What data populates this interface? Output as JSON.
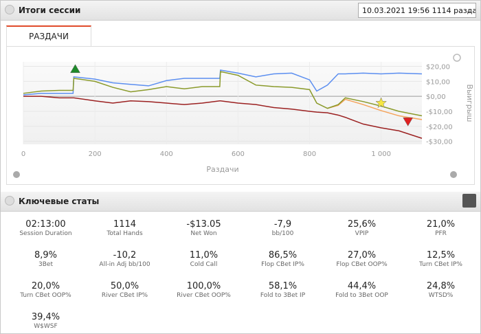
{
  "header": {
    "title": "Итоги сессии",
    "session_select": "10.03.2021 19:56 1114 раздач)"
  },
  "tab": "РАЗДАЧИ",
  "chart_data": {
    "type": "line",
    "x_label": "Раздачи",
    "y_label": "Выигрыш",
    "x": [
      0,
      50,
      100,
      139,
      141,
      200,
      250,
      300,
      350,
      400,
      450,
      500,
      549,
      551,
      600,
      650,
      700,
      750,
      800,
      820,
      850,
      880,
      900,
      950,
      1000,
      1050,
      1114
    ],
    "series": [
      {
        "color": "#5b8ef0",
        "values": [
          1,
          2,
          2,
          2,
          13,
          11.5,
          9,
          8,
          7,
          10.5,
          12,
          12,
          12,
          17.5,
          15.5,
          13,
          15,
          15.5,
          11,
          3.5,
          7.5,
          15,
          15,
          15.5,
          15,
          15.5,
          15
        ]
      },
      {
        "color": "#f5a35a",
        "values": [
          null,
          null,
          null,
          null,
          null,
          null,
          null,
          null,
          null,
          null,
          null,
          null,
          null,
          null,
          null,
          null,
          null,
          null,
          null,
          null,
          -8,
          -6,
          -2,
          -5.5,
          -9.5,
          -13,
          -15.5
        ]
      },
      {
        "color": "#8a9a2a",
        "values": [
          2,
          3.5,
          4,
          4,
          12,
          10,
          6,
          3,
          4.5,
          6.5,
          5,
          6.5,
          6.5,
          16.5,
          14,
          7.5,
          6.5,
          6,
          4.5,
          -4.5,
          -8,
          -5.5,
          -1,
          -3.5,
          -6.5,
          -10,
          -13
        ]
      },
      {
        "color": "#9b2020",
        "values": [
          0,
          0,
          -1,
          -1,
          -1,
          -3,
          -4.5,
          -3,
          -3.5,
          -4.5,
          -5.5,
          -4.5,
          -3,
          -3,
          -4.5,
          -5.5,
          -7.5,
          -8.5,
          -10,
          -10.5,
          -11,
          -12.5,
          -14,
          -18.5,
          -21,
          -23,
          -28
        ]
      }
    ],
    "markers": [
      {
        "x": 145,
        "y": 18.5,
        "color": "#1e8a2a",
        "shape": "triangle-up"
      },
      {
        "x": 1000,
        "y": -4.5,
        "color": "#f5e642",
        "shape": "star"
      },
      {
        "x": 1075,
        "y": -17,
        "color": "#e02020",
        "shape": "triangle-down"
      }
    ],
    "xlim": [
      0,
      1114
    ],
    "ylim": [
      -32,
      23
    ],
    "xticks": [
      0,
      200,
      400,
      600,
      800,
      {
        "value": 1000,
        "label": "1 000"
      }
    ],
    "yticks": [
      {
        "value": 20,
        "label": "$20,00"
      },
      {
        "value": 10,
        "label": "$10,00"
      },
      {
        "value": 0,
        "label": "$0,00"
      },
      {
        "value": -10,
        "label": "-$10,00"
      },
      {
        "value": -20,
        "label": "-$20,00"
      },
      {
        "value": -30,
        "label": "-$30,00"
      }
    ],
    "grid": true
  },
  "stats_title": "Ключевые статы",
  "stats": [
    {
      "value": "02:13:00",
      "label": "Session Duration"
    },
    {
      "value": "1114",
      "label": "Total Hands"
    },
    {
      "value": "-$13.05",
      "label": "Net Won"
    },
    {
      "value": "-7,9",
      "label": "bb/100"
    },
    {
      "value": "25,6%",
      "label": "VPIP"
    },
    {
      "value": "21,0%",
      "label": "PFR"
    },
    {
      "value": "8,9%",
      "label": "3Bet"
    },
    {
      "value": "-10,2",
      "label": "All-in Adj bb/100"
    },
    {
      "value": "11,0%",
      "label": "Cold Call"
    },
    {
      "value": "86,5%",
      "label": "Flop CBet IP%"
    },
    {
      "value": "27,0%",
      "label": "Flop CBet OOP%"
    },
    {
      "value": "12,5%",
      "label": "Turn CBet IP%"
    },
    {
      "value": "20,0%",
      "label": "Turn CBet OOP%"
    },
    {
      "value": "50,0%",
      "label": "River CBet IP%"
    },
    {
      "value": "100,0%",
      "label": "River CBet OOP%"
    },
    {
      "value": "58,1%",
      "label": "Fold to 3Bet IP"
    },
    {
      "value": "44,4%",
      "label": "Fold to 3Bet OOP"
    },
    {
      "value": "24,8%",
      "label": "WTSD%"
    },
    {
      "value": "39,4%",
      "label": "W$WSF"
    }
  ]
}
